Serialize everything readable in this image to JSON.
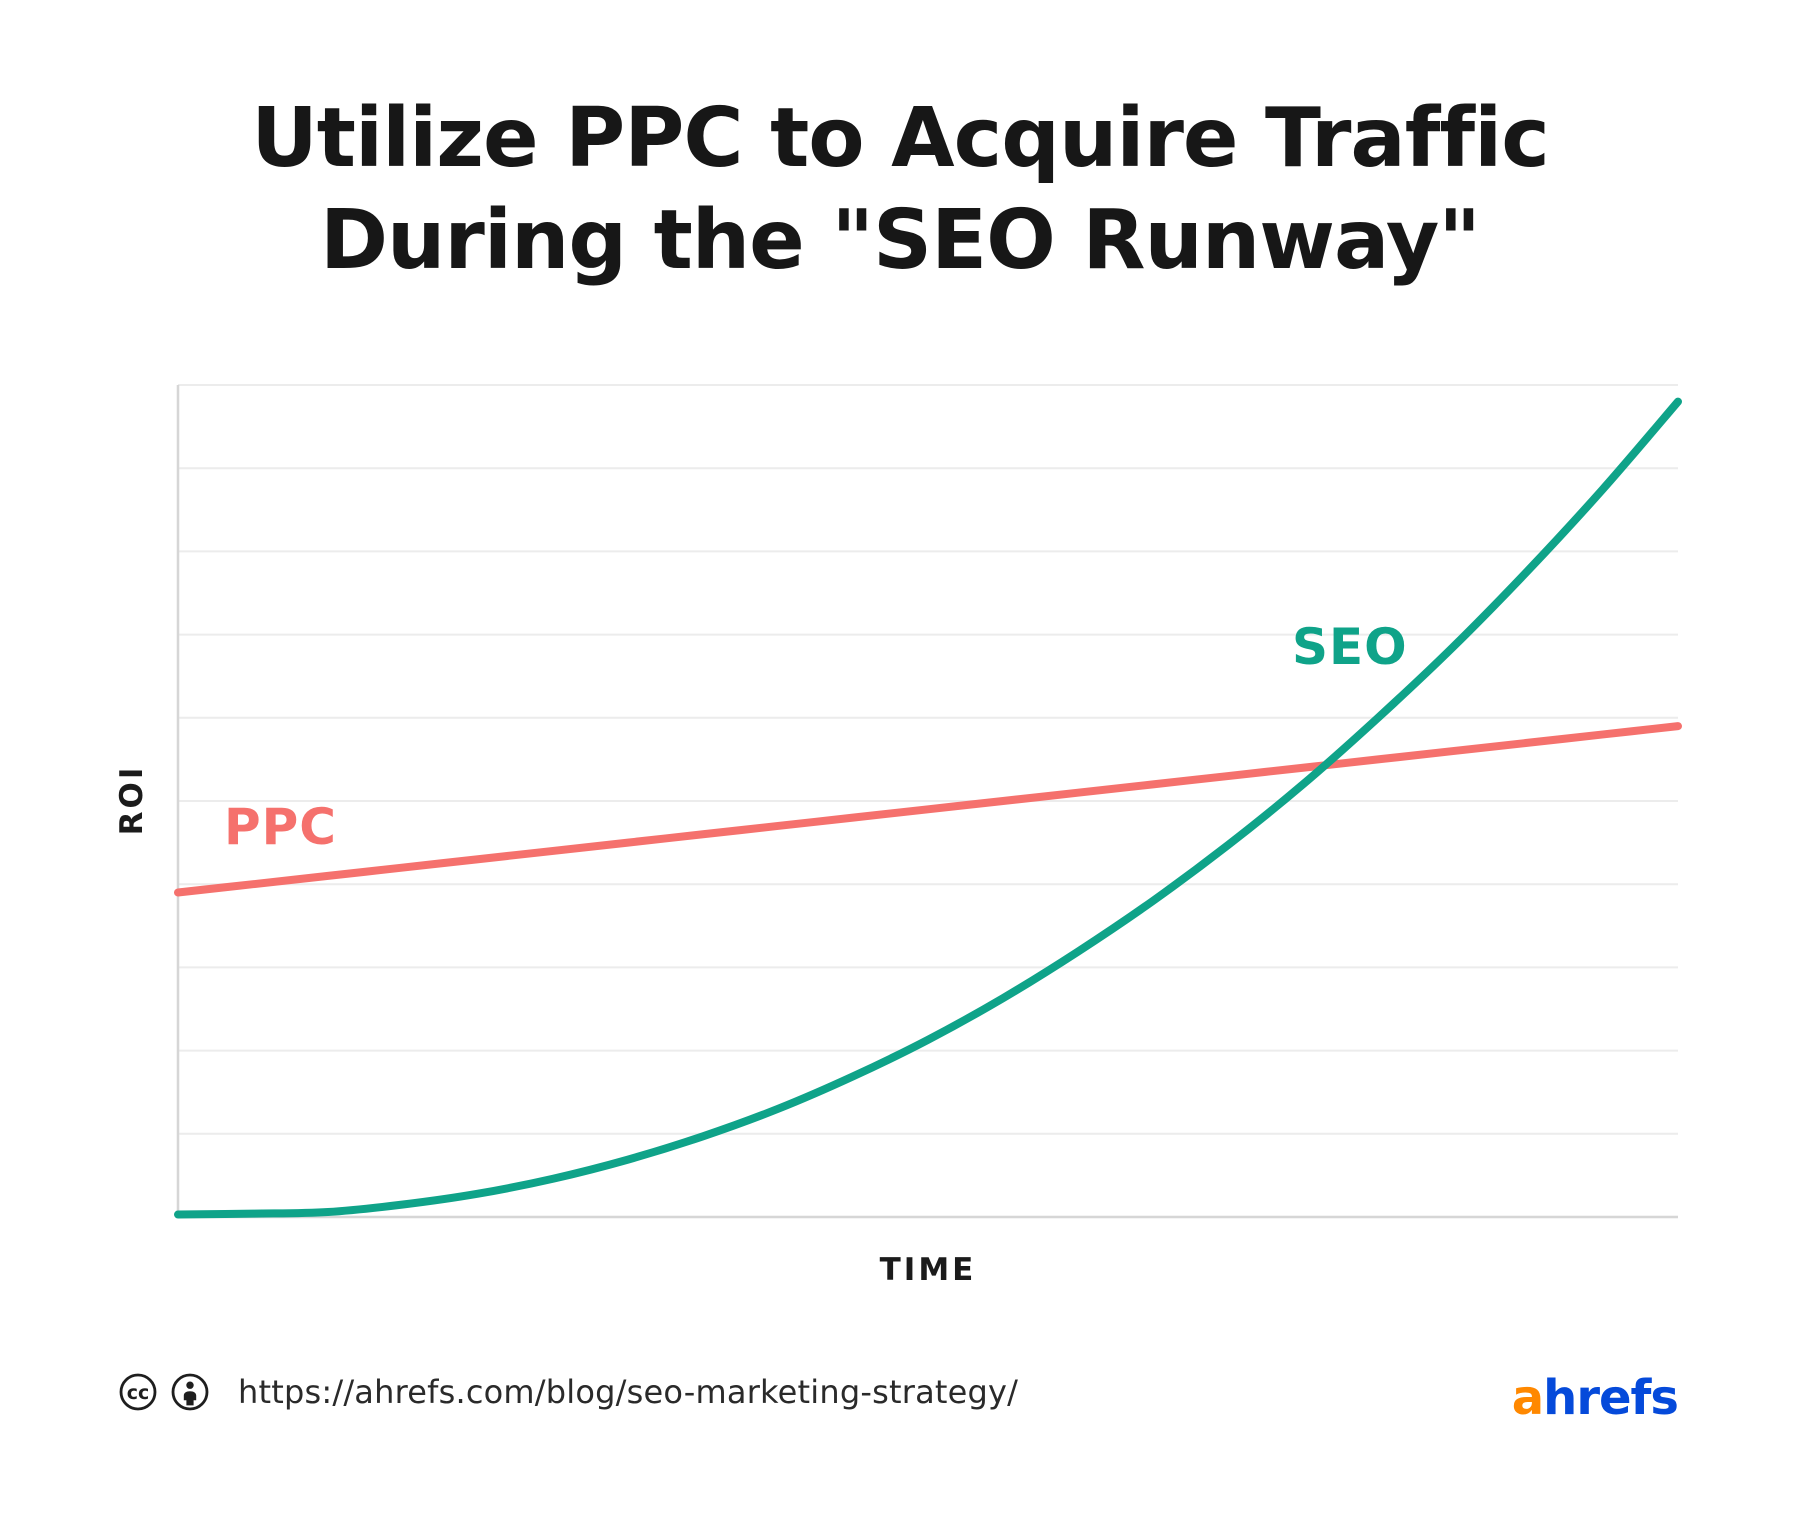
{
  "header": {
    "line1": "Utilize PPC to Acquire Traffic",
    "line2": "During the \"SEO Runway\""
  },
  "chart_data": {
    "type": "line",
    "title": "Utilize PPC to Acquire Traffic During the \"SEO Runway\"",
    "xlabel": "TIME",
    "ylabel": "ROI",
    "xlim": [
      0,
      100
    ],
    "ylim": [
      0,
      100
    ],
    "grid": "horizontal",
    "gridline_count": 10,
    "legend": "inline-labels",
    "x": [
      0,
      5,
      10,
      15,
      20,
      25,
      30,
      35,
      40,
      45,
      50,
      55,
      60,
      65,
      70,
      75,
      80,
      85,
      90,
      95,
      100
    ],
    "series": [
      {
        "name": "PPC",
        "color": "#f5716d",
        "shape": "linear",
        "values": [
          39,
          40,
          41,
          42,
          43,
          44,
          45,
          46,
          47,
          48,
          49,
          50,
          51,
          52,
          53,
          54,
          55,
          56,
          57,
          58,
          59
        ]
      },
      {
        "name": "SEO",
        "color": "#0fa389",
        "shape": "exponential",
        "values": [
          0.3,
          0.4,
          0.6,
          1.5,
          2.8,
          4.6,
          6.9,
          9.7,
          13,
          16.9,
          21.3,
          26.3,
          31.9,
          38,
          44.7,
          52,
          60,
          68.5,
          77.7,
          87.5,
          98
        ]
      }
    ],
    "annotations": [
      {
        "text": "PPC",
        "near": {
          "x": 5,
          "y": 47
        }
      },
      {
        "text": "SEO",
        "near": {
          "x": 77,
          "y": 68
        }
      }
    ],
    "crossover": {
      "x": 78,
      "y": 54.6
    }
  },
  "colors": {
    "gridline": "#ececec",
    "axis": "#d6d6d6",
    "title_text": "#171717",
    "axis_text": "#1b1b1b",
    "icon_stroke": "#1e1e1e"
  },
  "footer": {
    "icons": [
      "cc-icon",
      "attribution-icon"
    ],
    "url": "https://ahrefs.com/blog/seo-marketing-strategy/",
    "logo": {
      "text_a": "a",
      "text_rest": "hrefs",
      "color_a": "#ff8800",
      "color_rest": "#054ada"
    }
  }
}
